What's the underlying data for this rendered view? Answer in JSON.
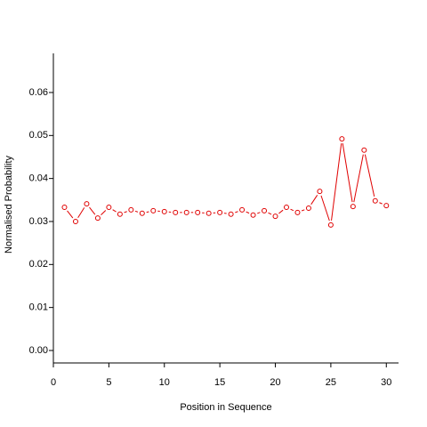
{
  "chart_data": {
    "type": "line",
    "x_label": "Position in Sequence",
    "y_label": "Normalised Probability",
    "color": "#e00000",
    "x": [
      1,
      2,
      3,
      4,
      5,
      6,
      7,
      8,
      9,
      10,
      11,
      12,
      13,
      14,
      15,
      16,
      17,
      18,
      19,
      20,
      21,
      22,
      23,
      24,
      25,
      26,
      27,
      28,
      29,
      30
    ],
    "values": [
      0.0333,
      0.03,
      0.0341,
      0.0308,
      0.0333,
      0.0317,
      0.0327,
      0.0319,
      0.0325,
      0.0323,
      0.0321,
      0.0321,
      0.0321,
      0.0319,
      0.0321,
      0.0317,
      0.0327,
      0.0315,
      0.0325,
      0.0312,
      0.0333,
      0.0321,
      0.0331,
      0.037,
      0.0292,
      0.0492,
      0.0335,
      0.0466,
      0.0348,
      0.0337
    ],
    "xlim": [
      0,
      31.1
    ],
    "ylim": [
      -0.0029,
      0.0691
    ],
    "xticks": [
      0,
      5,
      10,
      15,
      20,
      25,
      30
    ],
    "yticks": [
      {
        "value": 0,
        "label": "0.00"
      },
      0.01,
      0.02,
      0.03,
      0.04,
      0.05,
      0.06
    ]
  }
}
